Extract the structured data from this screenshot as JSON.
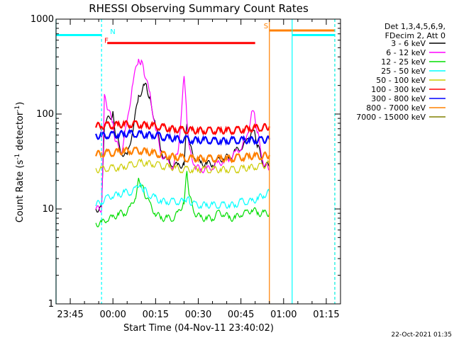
{
  "chart_data": {
    "type": "line",
    "title": "RHESSI Observing Summary Count Rates",
    "xlabel": "Start Time (04-Nov-11 23:40:02)",
    "ylabel": "Count Rate (s⁻¹ detector⁻¹)",
    "y_scale": "log",
    "ylim": [
      1,
      1000
    ],
    "xlim": [
      "23:40",
      "01:20"
    ],
    "x_ticks": [
      "23:45",
      "00:00",
      "00:15",
      "00:30",
      "00:45",
      "01:00",
      "01:15"
    ],
    "y_ticks": [
      "1",
      "10",
      "100",
      "1000"
    ],
    "grid": false,
    "legend_position": "right",
    "legend_header": [
      "Det 1,3,4,5,6,9,",
      "FDecim 2, Att 0"
    ],
    "footer": "22-Oct-2021 01:35",
    "series": [
      {
        "name": "3 - 6 keV",
        "color": "#000000",
        "x": [
          "23:54",
          "23:56",
          "23:57",
          "00:00",
          "00:01",
          "00:03",
          "00:05",
          "00:07",
          "00:09",
          "00:11",
          "00:12",
          "00:13",
          "00:15",
          "00:17",
          "00:19",
          "00:21",
          "00:23",
          "00:25",
          "00:26",
          "00:27",
          "00:29",
          "00:31",
          "00:33",
          "00:35",
          "00:37",
          "00:39",
          "00:41",
          "00:43",
          "00:45",
          "00:47",
          "00:49",
          "00:50",
          "00:51",
          "00:53",
          "00:55"
        ],
        "y": [
          10,
          10,
          80,
          100,
          60,
          40,
          35,
          70,
          150,
          200,
          190,
          140,
          80,
          40,
          32,
          30,
          28,
          30,
          80,
          45,
          35,
          30,
          30,
          30,
          32,
          35,
          35,
          40,
          45,
          50,
          70,
          60,
          45,
          30,
          28
        ]
      },
      {
        "name": "6 - 12 keV",
        "color": "#ff00ff",
        "x": [
          "23:54",
          "23:56",
          "23:57",
          "23:58",
          "00:00",
          "00:01",
          "00:03",
          "00:05",
          "00:07",
          "00:09",
          "00:10",
          "00:11",
          "00:13",
          "00:15",
          "00:17",
          "00:19",
          "00:21",
          "00:23",
          "00:25",
          "00:26",
          "00:27",
          "00:29",
          "00:31",
          "00:33",
          "00:35",
          "00:37",
          "00:39",
          "00:41",
          "00:43",
          "00:45",
          "00:47",
          "00:49",
          "00:50",
          "00:51",
          "00:53",
          "00:55"
        ],
        "y": [
          10,
          10,
          150,
          120,
          80,
          50,
          40,
          80,
          220,
          380,
          350,
          280,
          160,
          70,
          38,
          32,
          28,
          40,
          250,
          90,
          40,
          28,
          26,
          26,
          28,
          30,
          32,
          34,
          38,
          45,
          55,
          110,
          90,
          60,
          30,
          26
        ]
      },
      {
        "name": "12 - 25 keV",
        "color": "#00dd00",
        "x": [
          "23:54",
          "23:56",
          "23:58",
          "00:00",
          "00:02",
          "00:04",
          "00:06",
          "00:08",
          "00:09",
          "00:10",
          "00:11",
          "00:13",
          "00:15",
          "00:17",
          "00:19",
          "00:21",
          "00:23",
          "00:25",
          "00:26",
          "00:27",
          "00:29",
          "00:31",
          "00:33",
          "00:35",
          "00:37",
          "00:39",
          "00:41",
          "00:43",
          "00:45",
          "00:47",
          "00:49",
          "00:51",
          "00:53",
          "00:55"
        ],
        "y": [
          7,
          7,
          8,
          8,
          9,
          9,
          10,
          14,
          20,
          18,
          15,
          11,
          9,
          8,
          8,
          8,
          9,
          12,
          25,
          13,
          9,
          8,
          8,
          8,
          9,
          9,
          8,
          8,
          9,
          9,
          10,
          9,
          9,
          9
        ]
      },
      {
        "name": "25 - 50 keV",
        "color": "#00ffff",
        "x": [
          "23:54",
          "23:56",
          "23:58",
          "00:00",
          "00:02",
          "00:04",
          "00:06",
          "00:08",
          "00:09",
          "00:10",
          "00:11",
          "00:13",
          "00:15",
          "00:17",
          "00:19",
          "00:21",
          "00:23",
          "00:25",
          "00:26",
          "00:27",
          "00:29",
          "00:31",
          "00:33",
          "00:35",
          "00:37",
          "00:39",
          "00:41",
          "00:43",
          "00:45",
          "00:47",
          "00:49",
          "00:51",
          "00:53",
          "00:55"
        ],
        "y": [
          11,
          12,
          13,
          14,
          14,
          15,
          15,
          16,
          18,
          17,
          16,
          14,
          13,
          12,
          12,
          12,
          12,
          12,
          13,
          12,
          11,
          11,
          11,
          11,
          11,
          11,
          11,
          11,
          12,
          12,
          12,
          13,
          14,
          15
        ]
      },
      {
        "name": "50 - 100 keV",
        "color": "#cccc00",
        "x": [
          "23:54",
          "23:56",
          "23:58",
          "00:00",
          "00:02",
          "00:04",
          "00:06",
          "00:08",
          "00:10",
          "00:12",
          "00:14",
          "00:16",
          "00:18",
          "00:20",
          "00:22",
          "00:24",
          "00:26",
          "00:28",
          "00:30",
          "00:32",
          "00:34",
          "00:36",
          "00:38",
          "00:40",
          "00:42",
          "00:44",
          "00:46",
          "00:48",
          "00:50",
          "00:52",
          "00:55"
        ],
        "y": [
          26,
          26,
          27,
          27,
          27,
          28,
          29,
          30,
          31,
          30,
          30,
          29,
          28,
          28,
          27,
          26,
          26,
          26,
          26,
          26,
          26,
          26,
          26,
          26,
          26,
          26,
          27,
          27,
          28,
          28,
          30
        ]
      },
      {
        "name": "100 - 300 keV",
        "color": "#ff0000",
        "x": [
          "23:54",
          "23:56",
          "23:58",
          "00:00",
          "00:02",
          "00:04",
          "00:06",
          "00:08",
          "00:10",
          "00:12",
          "00:14",
          "00:16",
          "00:18",
          "00:20",
          "00:22",
          "00:24",
          "00:26",
          "00:28",
          "00:30",
          "00:32",
          "00:34",
          "00:36",
          "00:38",
          "00:40",
          "00:42",
          "00:44",
          "00:46",
          "00:48",
          "00:50",
          "00:52",
          "00:55"
        ],
        "y": [
          75,
          75,
          76,
          76,
          77,
          78,
          78,
          78,
          77,
          76,
          75,
          74,
          72,
          70,
          69,
          68,
          68,
          67,
          67,
          67,
          67,
          67,
          67,
          67,
          67,
          68,
          69,
          70,
          71,
          72,
          74
        ]
      },
      {
        "name": "300 - 800 keV",
        "color": "#0000ff",
        "x": [
          "23:54",
          "23:56",
          "23:58",
          "00:00",
          "00:02",
          "00:04",
          "00:06",
          "00:08",
          "00:10",
          "00:12",
          "00:14",
          "00:16",
          "00:18",
          "00:20",
          "00:22",
          "00:24",
          "00:26",
          "00:28",
          "00:30",
          "00:32",
          "00:34",
          "00:36",
          "00:38",
          "00:40",
          "00:42",
          "00:44",
          "00:46",
          "00:48",
          "00:50",
          "00:52",
          "00:55"
        ],
        "y": [
          59,
          59,
          60,
          60,
          61,
          62,
          62,
          62,
          61,
          60,
          60,
          59,
          57,
          56,
          55,
          54,
          54,
          53,
          53,
          53,
          53,
          52,
          52,
          52,
          53,
          53,
          53,
          53,
          53,
          53,
          54
        ]
      },
      {
        "name": "800 - 7000 keV",
        "color": "#ff8000",
        "x": [
          "23:54",
          "23:56",
          "23:58",
          "00:00",
          "00:02",
          "00:04",
          "00:06",
          "00:08",
          "00:10",
          "00:12",
          "00:14",
          "00:16",
          "00:18",
          "00:20",
          "00:22",
          "00:24",
          "00:26",
          "00:28",
          "00:30",
          "00:32",
          "00:34",
          "00:36",
          "00:38",
          "00:40",
          "00:42",
          "00:44",
          "00:46",
          "00:48",
          "00:50",
          "00:52",
          "00:55"
        ],
        "y": [
          38,
          38,
          39,
          39,
          40,
          41,
          41,
          41,
          41,
          40,
          39,
          38,
          37,
          36,
          35,
          35,
          34,
          34,
          34,
          34,
          34,
          34,
          34,
          34,
          34,
          35,
          35,
          36,
          36,
          36,
          37
        ]
      },
      {
        "name": "7000 - 15000 keV",
        "color": "#808000",
        "x": [],
        "y": []
      }
    ],
    "annotations": [
      {
        "label": "N",
        "color": "#00ffff",
        "text_x": "23:59",
        "text_y": 700
      },
      {
        "label": "F",
        "color": "#ff0000",
        "text_x": "23:57",
        "text_y": 560
      },
      {
        "label": "S",
        "color": "#ff8000",
        "text_x": "00:53",
        "text_y": 800
      }
    ],
    "state_bars": [
      {
        "color": "#00ffff",
        "x0": "23:40",
        "x1": "23:56",
        "y": 680
      },
      {
        "color": "#00ffff",
        "x0": "01:03",
        "x1": "01:18",
        "y": 680
      },
      {
        "color": "#ff0000",
        "x0": "23:58",
        "x1": "00:50",
        "y": 560
      },
      {
        "color": "#ff8000",
        "x0": "00:55",
        "x1": "01:18",
        "y": 760
      }
    ],
    "vertical_lines": [
      {
        "x": "23:40",
        "color": "#00ffff",
        "style": "solid"
      },
      {
        "x": "23:56",
        "color": "#00ffff",
        "style": "dashed"
      },
      {
        "x": "00:55",
        "color": "#ff8000",
        "style": "solid"
      },
      {
        "x": "01:03",
        "color": "#00ffff",
        "style": "solid"
      },
      {
        "x": "01:18",
        "color": "#ff8000",
        "style": "dashed"
      },
      {
        "x": "01:18",
        "color": "#00ffff",
        "style": "dashed"
      }
    ]
  }
}
